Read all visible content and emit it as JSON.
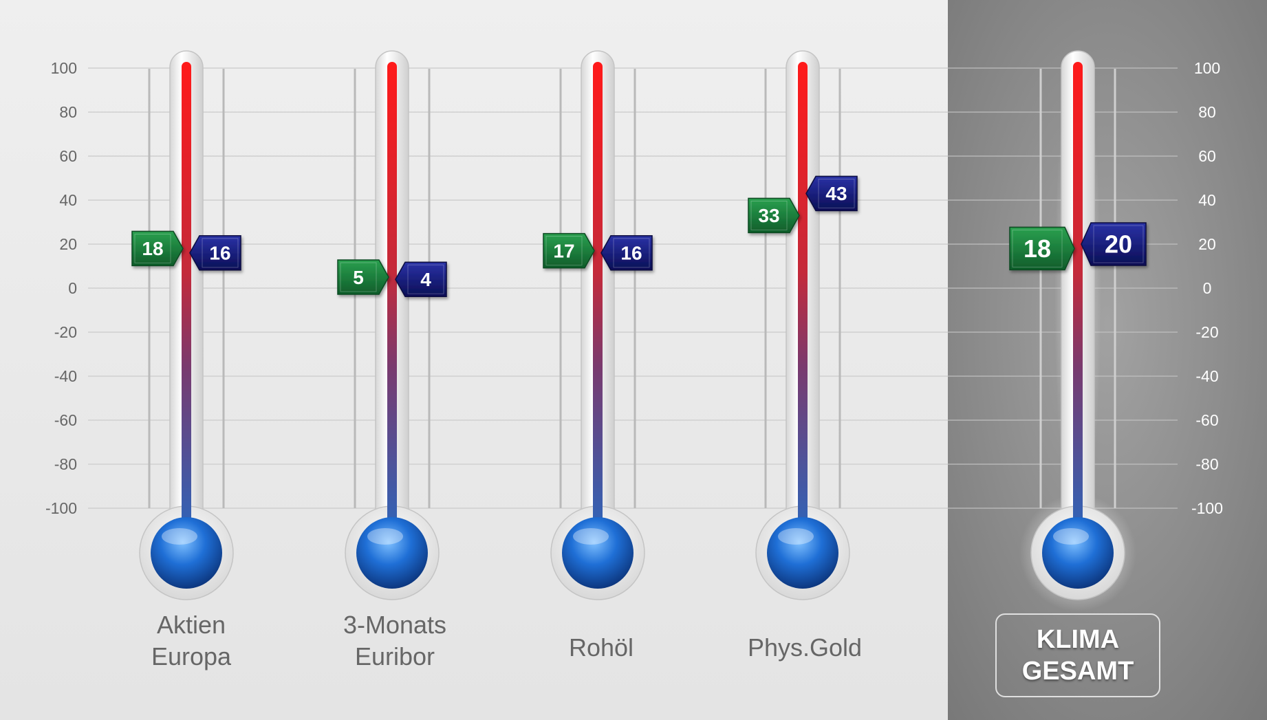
{
  "colors": {
    "current_marker": "#1a7a3c",
    "previous_marker": "#10166e",
    "mercury_top": "#ff0000",
    "mercury_bottom": "#1a4fb0",
    "bulb": "#1f6fd6",
    "panel_light": "#ececec",
    "panel_dark": "#8a8a8a"
  },
  "chart_data": {
    "type": "bar",
    "ylim": [
      -100,
      100
    ],
    "y_ticks": [
      "100",
      "80",
      "60",
      "40",
      "20",
      "0",
      "-20",
      "-40",
      "-60",
      "-80",
      "-100"
    ],
    "grid": true,
    "gauges": [
      {
        "label_lines": [
          "Aktien",
          "Europa"
        ],
        "green": 18,
        "blue": 16
      },
      {
        "label_lines": [
          "3-Monats",
          "Euribor"
        ],
        "green": 5,
        "blue": 4
      },
      {
        "label_lines": [
          "Rohöl"
        ],
        "green": 17,
        "blue": 16
      },
      {
        "label_lines": [
          "Phys.Gold"
        ],
        "green": 33,
        "blue": 43
      }
    ],
    "summary": {
      "label_lines": [
        "KLIMA",
        "GESAMT"
      ],
      "green": 18,
      "blue": 20
    }
  }
}
